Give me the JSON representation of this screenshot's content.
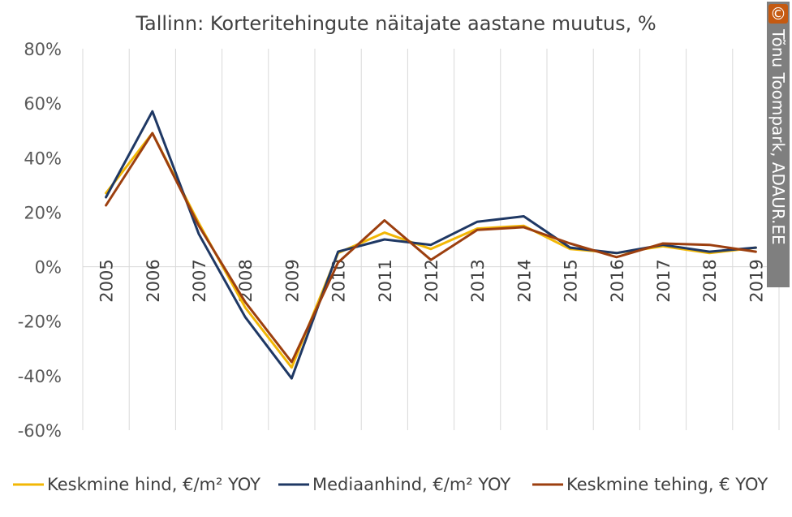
{
  "chart_data": {
    "type": "line",
    "title": "Tallinn: Korteritehingute näitajate aastane muutus, %",
    "xlabel": "",
    "ylabel": "",
    "categories": [
      "2005",
      "2006",
      "2007",
      "2008",
      "2009",
      "2010",
      "2011",
      "2012",
      "2013",
      "2014",
      "2015",
      "2016",
      "2017",
      "2018",
      "2019"
    ],
    "ylim": [
      -60,
      80
    ],
    "yticks": [
      80,
      60,
      40,
      20,
      0,
      -20,
      -40,
      -60
    ],
    "ytick_labels": [
      "80%",
      "60%",
      "40%",
      "20%",
      "0%",
      "-20%",
      "-40%",
      "-60%"
    ],
    "grid": "vertical",
    "legend_position": "bottom",
    "series": [
      {
        "name": "Keskmine hind, €/m² YOY",
        "color": "#f2b705",
        "values": [
          27,
          49,
          16,
          -15,
          -37,
          5,
          12.5,
          6.5,
          14,
          15,
          6.5,
          5,
          7.5,
          5,
          7
        ]
      },
      {
        "name": "Mediaanhind, €/m² YOY",
        "color": "#1f3864",
        "values": [
          25.5,
          57,
          12,
          -18.5,
          -41,
          5.5,
          10,
          8,
          16.5,
          18.5,
          7,
          5,
          8,
          5.5,
          7
        ]
      },
      {
        "name": "Keskmine tehing, € YOY",
        "color": "#9c3f0f",
        "values": [
          22.5,
          49,
          15,
          -13,
          -35,
          1.5,
          17,
          2.5,
          13.5,
          14.5,
          8.5,
          3.5,
          8.5,
          8,
          5.5
        ]
      }
    ]
  },
  "credit": {
    "symbol": "©",
    "text": "Tõnu Toompark, ADAUR.EE",
    "bg_color": "#7f7f7f",
    "symbol_color": "#c55a11"
  }
}
